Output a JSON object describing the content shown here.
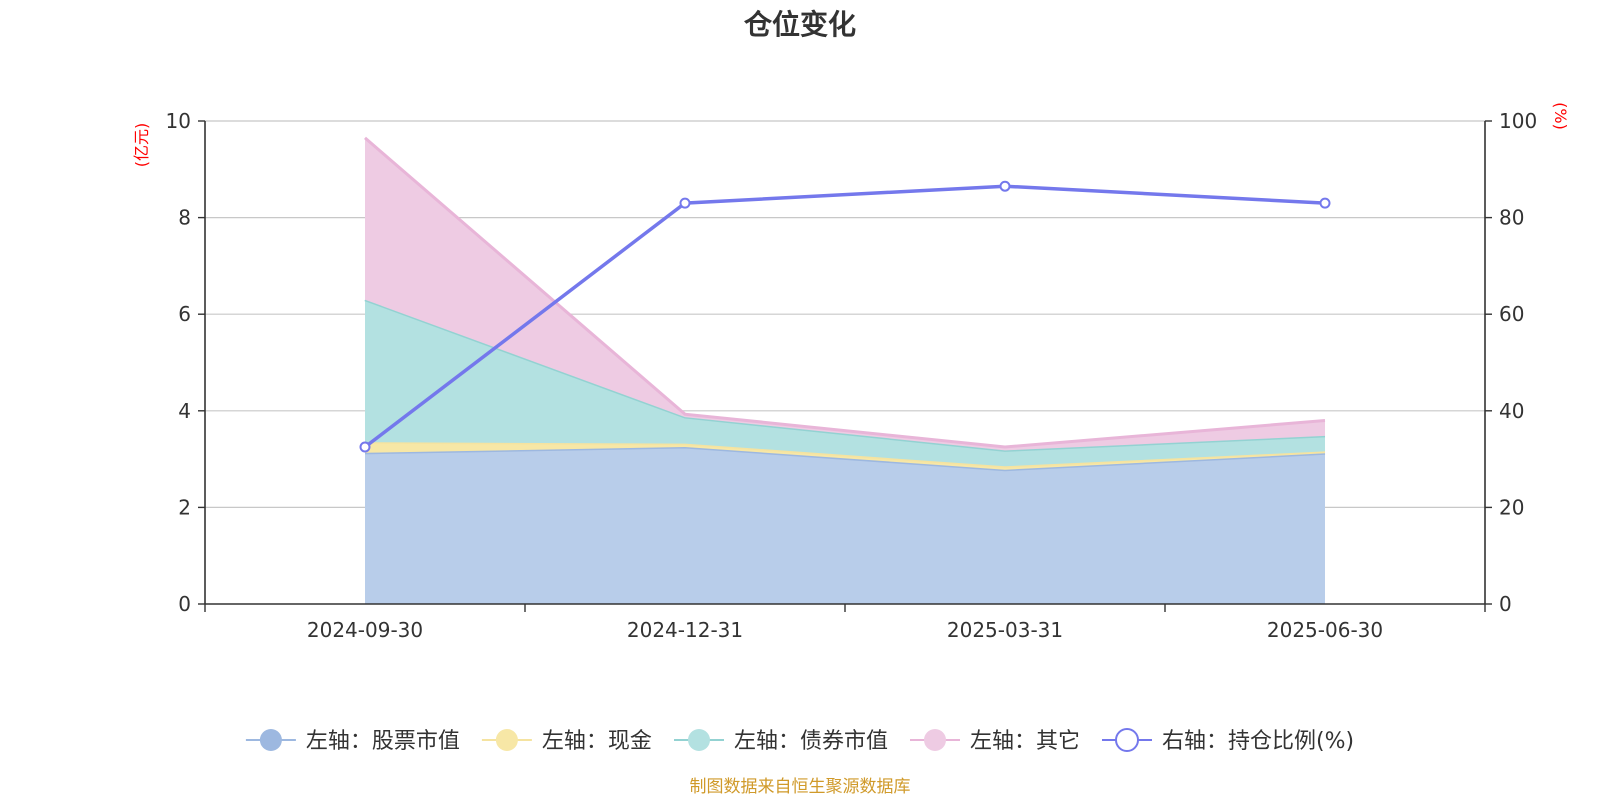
{
  "chart_data": {
    "type": "area",
    "title": "仓位变化",
    "categories": [
      "2024-09-30",
      "2024-12-31",
      "2025-03-31",
      "2025-06-30"
    ],
    "left_axis": {
      "unit": "(亿元)",
      "ylim": [
        0,
        10
      ],
      "ticks": [
        "0",
        "2",
        "4",
        "6",
        "8",
        "10"
      ]
    },
    "right_axis": {
      "unit": "(%)",
      "ylim": [
        0,
        100
      ],
      "ticks": [
        "0",
        "20",
        "40",
        "60",
        "80",
        "100"
      ]
    },
    "series": [
      {
        "name": "左轴：股票市值",
        "axis": "left",
        "kind": "stacked-area",
        "values": [
          3.13,
          3.25,
          2.78,
          3.12
        ],
        "color": "#9db8e0",
        "fill": "#b8cdea"
      },
      {
        "name": "左轴：现金",
        "axis": "left",
        "kind": "stacked-area",
        "values": [
          0.22,
          0.07,
          0.07,
          0.04
        ],
        "color": "#f5e3a0",
        "fill": "#f7e7a6"
      },
      {
        "name": "左轴：债券市值",
        "axis": "left",
        "kind": "stacked-area",
        "values": [
          2.95,
          0.55,
          0.33,
          0.32
        ],
        "color": "#93d2d2",
        "fill": "#b3e1e1"
      },
      {
        "name": "左轴：其它",
        "axis": "left",
        "kind": "stacked-area",
        "values": [
          3.35,
          0.06,
          0.07,
          0.32
        ],
        "color": "#e8b5d8",
        "fill": "#eecbe3"
      },
      {
        "name": "右轴：持仓比例(%)",
        "axis": "right",
        "kind": "line",
        "values": [
          32.5,
          83.0,
          86.5,
          83.0
        ],
        "color": "#7478ec"
      }
    ],
    "grid": true,
    "legend_position": "bottom",
    "source": "制图数据来自恒生聚源数据库"
  }
}
